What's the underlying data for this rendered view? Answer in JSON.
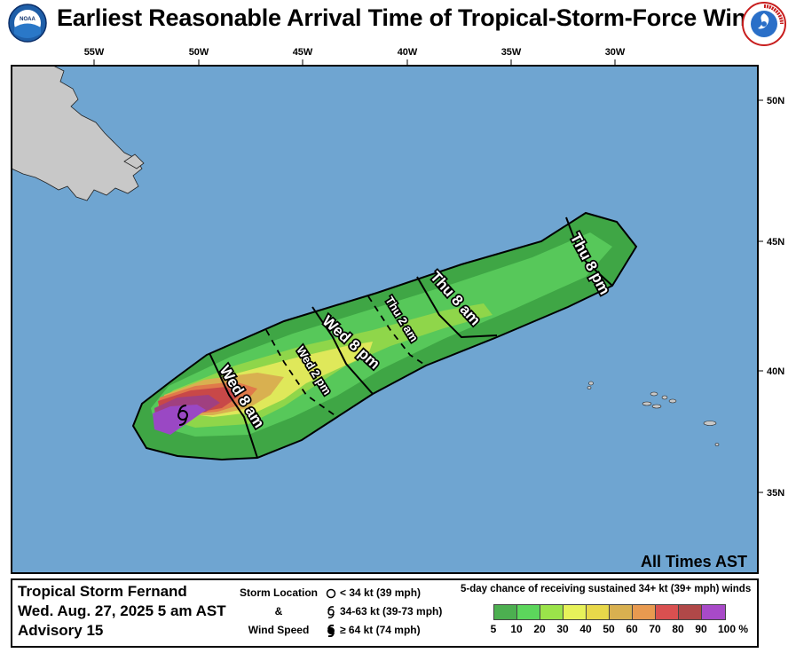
{
  "header": {
    "title": "Earliest Reasonable Arrival Time of Tropical-Storm-Force Winds",
    "noaa_logo_text": "NOAA",
    "nws_logo_text": "NATIONAL WEATHER SERVICE"
  },
  "map": {
    "lon_labels": [
      "55W",
      "50W",
      "45W",
      "40W",
      "35W",
      "30W"
    ],
    "lat_labels": [
      "50N",
      "45N",
      "40N",
      "35N"
    ],
    "time_labels": [
      "Wed 8 am",
      "Wed 2 pm",
      "Wed 8 pm",
      "Thu 2 am",
      "Thu 8 am",
      "Thu 8 pm"
    ],
    "timezone_note": "All Times AST",
    "ocean_color": "#6fa5d1",
    "land_color": "#c8c8c8",
    "storm_symbol": "tropical-storm-icon"
  },
  "footer": {
    "storm_name": "Tropical Storm Fernand",
    "advisory_time": "Wed. Aug. 27, 2025  5 am AST",
    "advisory_number": "Advisory 15",
    "legend_label_1": "Storm Location",
    "legend_label_2": "&",
    "legend_label_3": "Wind Speed",
    "wind_levels": [
      "< 34 kt (39 mph)",
      "34-63 kt (39-73 mph)",
      "≥ 64 kt (74 mph)"
    ],
    "prob_title": "5-day chance of receiving sustained 34+ kt (39+ mph) winds",
    "prob_labels": [
      "5",
      "10",
      "20",
      "30",
      "40",
      "50",
      "60",
      "70",
      "80",
      "90",
      "100 %"
    ],
    "prob_colors": [
      "#4caf50",
      "#5cd65c",
      "#9be34a",
      "#e7f25a",
      "#e8d84a",
      "#d8b050",
      "#e89a50",
      "#d95050",
      "#b04848",
      "#a84ac8"
    ]
  }
}
